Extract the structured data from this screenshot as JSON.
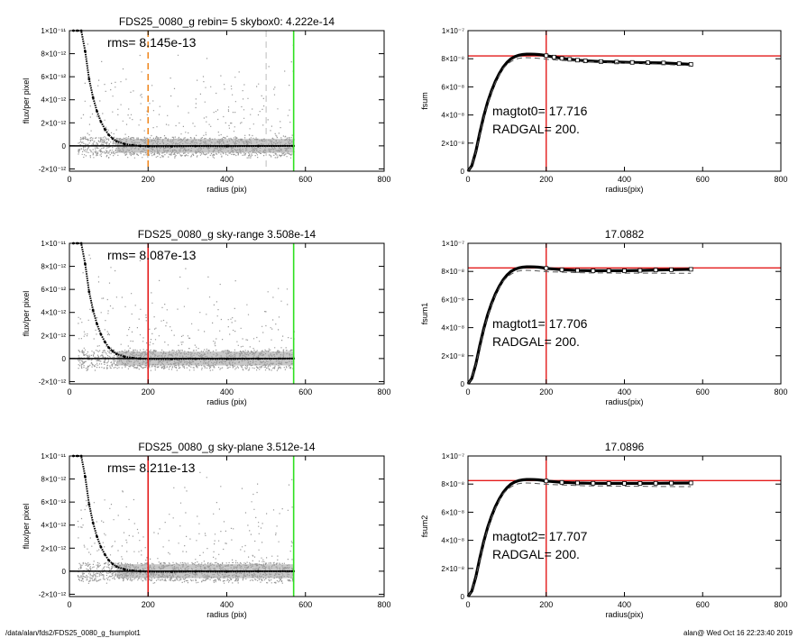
{
  "colors": {
    "points": "#999999",
    "profile": "#000000",
    "orange_line": "#f08a24",
    "red_line": "#e41b1b",
    "green_line": "#2fe01f",
    "faint_line": "#bdbdbd"
  },
  "footer": {
    "left": "/data/alan/fds2/FDS25_0080_g_fsumplot1",
    "right": "alan@  Wed Oct 16 22:23:40 2019"
  },
  "chart_data": [
    {
      "type": "scatter",
      "title": "FDS25_0080_g rebin= 5    skybox0:  4.222e-14",
      "annotations": [
        "rms= 8.145e-13"
      ],
      "xlabel": "radius (pix)",
      "ylabel": "flux/per pixel",
      "xlim": [
        0,
        800
      ],
      "ylim": [
        -2.2e-12,
        1e-11
      ],
      "xticks": [
        0,
        200,
        400,
        600,
        800
      ],
      "xtick_labels": [
        "0",
        "200",
        "400",
        "600",
        "800"
      ],
      "yticks": [
        -2e-12,
        0,
        2e-12,
        4e-12,
        6e-12,
        8e-12,
        1e-11
      ],
      "ytick_labels": [
        "-2×10⁻¹²",
        "0",
        "2×10⁻¹²",
        "4×10⁻¹²",
        "6×10⁻¹²",
        "8×10⁻¹²",
        "1×10⁻¹¹"
      ],
      "vlines": [
        {
          "x": 200,
          "color": "orange",
          "style": "dashed"
        },
        {
          "x": 500,
          "color": "faint",
          "style": "dashed"
        },
        {
          "x": 570,
          "color": "green",
          "style": "solid"
        }
      ],
      "hline": 0,
      "profile": {
        "x": [
          10,
          20,
          30,
          40,
          50,
          60,
          70,
          80,
          90,
          100,
          110,
          120,
          140,
          160,
          180,
          200,
          260,
          320,
          400,
          480,
          570
        ],
        "y": [
          1e-11,
          1e-11,
          1e-11,
          8.2e-12,
          5.8e-12,
          4.2e-12,
          3e-12,
          2.1e-12,
          1.45e-12,
          9.5e-13,
          6.3e-13,
          4e-13,
          1.6e-13,
          5e-14,
          0,
          -3e-14,
          -4e-14,
          -2e-14,
          -3e-14,
          -1e-14,
          0
        ]
      }
    },
    {
      "type": "line",
      "title": "",
      "annotations": [
        "magtot0=  17.716",
        "RADGAL=    200."
      ],
      "xlabel": "radius(pix)",
      "ylabel": "fsum",
      "xlim": [
        0,
        800
      ],
      "ylim": [
        0,
        1e-07
      ],
      "xticks": [
        0,
        200,
        400,
        600,
        800
      ],
      "xtick_labels": [
        "0",
        "200",
        "400",
        "600",
        "800"
      ],
      "yticks": [
        0,
        2e-08,
        4e-08,
        6e-08,
        8e-08,
        1e-07
      ],
      "ytick_labels": [
        "0",
        "2×10⁻⁸",
        "4×10⁻⁸",
        "6×10⁻⁸",
        "8×10⁻⁸",
        "1×10⁻⁷"
      ],
      "hline": 8.2e-08,
      "vline": 200,
      "series": [
        {
          "x": [
            0,
            10,
            20,
            30,
            40,
            50,
            60,
            70,
            80,
            90,
            100,
            110,
            120,
            130,
            140,
            150,
            160,
            170,
            180,
            190,
            200,
            220,
            240,
            260,
            280,
            300,
            340,
            380,
            420,
            460,
            500,
            540,
            570
          ],
          "y": [
            0,
            4e-09,
            1.4e-08,
            2.7e-08,
            3.9e-08,
            4.9e-08,
            5.7e-08,
            6.4e-08,
            6.95e-08,
            7.4e-08,
            7.75e-08,
            8e-08,
            8.15e-08,
            8.25e-08,
            8.3e-08,
            8.33e-08,
            8.33e-08,
            8.32e-08,
            8.3e-08,
            8.27e-08,
            8.22e-08,
            8.12e-08,
            8.03e-08,
            7.96e-08,
            7.9e-08,
            7.85e-08,
            7.8e-08,
            7.77e-08,
            7.74e-08,
            7.72e-08,
            7.7e-08,
            7.65e-08,
            7.6e-08
          ]
        },
        {
          "x": [
            0,
            10,
            20,
            30,
            40,
            50,
            60,
            70,
            80,
            90,
            100,
            110,
            120,
            130,
            140,
            150,
            160,
            170,
            180,
            190,
            200,
            240,
            300,
            400,
            500,
            570
          ],
          "y": [
            0,
            4e-09,
            1.35e-08,
            2.6e-08,
            3.8e-08,
            4.8e-08,
            5.6e-08,
            6.3e-08,
            6.85e-08,
            7.3e-08,
            7.6e-08,
            7.8e-08,
            7.95e-08,
            8.03e-08,
            8.07e-08,
            8.08e-08,
            8.07e-08,
            8.05e-08,
            8.03e-08,
            8e-08,
            7.97e-08,
            7.88e-08,
            7.8e-08,
            7.7e-08,
            7.6e-08,
            7.5e-08
          ]
        }
      ]
    },
    {
      "type": "scatter",
      "title": "FDS25_0080_g sky-range  3.508e-14",
      "annotations": [
        "rms= 8.087e-13"
      ],
      "xlabel": "radius (pix)",
      "ylabel": "flux/per pixel",
      "xlim": [
        0,
        800
      ],
      "ylim": [
        -2.2e-12,
        1e-11
      ],
      "xticks": [
        0,
        200,
        400,
        600,
        800
      ],
      "xtick_labels": [
        "0",
        "200",
        "400",
        "600",
        "800"
      ],
      "yticks": [
        -2e-12,
        0,
        2e-12,
        4e-12,
        6e-12,
        8e-12,
        1e-11
      ],
      "ytick_labels": [
        "-2×10⁻¹²",
        "0",
        "2×10⁻¹²",
        "4×10⁻¹²",
        "6×10⁻¹²",
        "8×10⁻¹²",
        "1×10⁻¹¹"
      ],
      "vlines": [
        {
          "x": 200,
          "color": "red",
          "style": "solid"
        },
        {
          "x": 570,
          "color": "green",
          "style": "solid"
        }
      ],
      "hline": 0,
      "profile": {
        "x": [
          10,
          20,
          30,
          40,
          50,
          60,
          70,
          80,
          90,
          100,
          110,
          120,
          140,
          160,
          180,
          200,
          260,
          320,
          400,
          480,
          570
        ],
        "y": [
          1e-11,
          1e-11,
          1e-11,
          8.2e-12,
          5.8e-12,
          4.2e-12,
          3e-12,
          2.1e-12,
          1.45e-12,
          9.5e-13,
          6.3e-13,
          4e-13,
          1.6e-13,
          5e-14,
          0,
          -3e-14,
          -4e-14,
          -2e-14,
          -3e-14,
          -1e-14,
          0
        ]
      }
    },
    {
      "type": "line",
      "title": "17.0882",
      "annotations": [
        "magtot1=  17.706",
        "RADGAL=    200."
      ],
      "xlabel": "radius(pix)",
      "ylabel": "fsum1",
      "xlim": [
        0,
        800
      ],
      "ylim": [
        0,
        1e-07
      ],
      "xticks": [
        0,
        200,
        400,
        600,
        800
      ],
      "xtick_labels": [
        "0",
        "200",
        "400",
        "600",
        "800"
      ],
      "yticks": [
        0,
        2e-08,
        4e-08,
        6e-08,
        8e-08,
        1e-07
      ],
      "ytick_labels": [
        "0",
        "2×10⁻⁸",
        "4×10⁻⁸",
        "6×10⁻⁸",
        "8×10⁻⁸",
        "1×10⁻⁷"
      ],
      "hline": 8.25e-08,
      "vline": 200,
      "series": [
        {
          "x": [
            0,
            10,
            20,
            30,
            40,
            50,
            60,
            70,
            80,
            90,
            100,
            110,
            120,
            130,
            140,
            150,
            160,
            170,
            180,
            190,
            200,
            240,
            280,
            320,
            360,
            400,
            440,
            480,
            520,
            570
          ],
          "y": [
            0,
            4e-09,
            1.4e-08,
            2.7e-08,
            3.9e-08,
            4.9e-08,
            5.7e-08,
            6.4e-08,
            6.95e-08,
            7.4e-08,
            7.75e-08,
            8e-08,
            8.15e-08,
            8.25e-08,
            8.3e-08,
            8.33e-08,
            8.33e-08,
            8.32e-08,
            8.3e-08,
            8.27e-08,
            8.22e-08,
            8.12e-08,
            8.07e-08,
            8.05e-08,
            8.05e-08,
            8.05e-08,
            8.07e-08,
            8.1e-08,
            8.12e-08,
            8.15e-08
          ]
        },
        {
          "x": [
            0,
            10,
            20,
            30,
            40,
            50,
            60,
            70,
            80,
            90,
            100,
            110,
            120,
            130,
            140,
            150,
            160,
            170,
            180,
            190,
            200,
            300,
            400,
            500,
            570
          ],
          "y": [
            0,
            4e-09,
            1.35e-08,
            2.6e-08,
            3.8e-08,
            4.8e-08,
            5.6e-08,
            6.3e-08,
            6.85e-08,
            7.3e-08,
            7.6e-08,
            7.8e-08,
            7.95e-08,
            8.03e-08,
            8.07e-08,
            8.08e-08,
            8.07e-08,
            8.05e-08,
            8.03e-08,
            8e-08,
            7.98e-08,
            7.9e-08,
            7.88e-08,
            7.87e-08,
            7.87e-08
          ]
        }
      ]
    },
    {
      "type": "scatter",
      "title": "FDS25_0080_g sky-plane  3.512e-14",
      "annotations": [
        "rms= 8.211e-13"
      ],
      "xlabel": "radius (pix)",
      "ylabel": "flux/per pixel",
      "xlim": [
        0,
        800
      ],
      "ylim": [
        -2.2e-12,
        1e-11
      ],
      "xticks": [
        0,
        200,
        400,
        600,
        800
      ],
      "xtick_labels": [
        "0",
        "200",
        "400",
        "600",
        "800"
      ],
      "yticks": [
        -2e-12,
        0,
        2e-12,
        4e-12,
        6e-12,
        8e-12,
        1e-11
      ],
      "ytick_labels": [
        "-2×10⁻¹²",
        "0",
        "2×10⁻¹²",
        "4×10⁻¹²",
        "6×10⁻¹²",
        "8×10⁻¹²",
        "1×10⁻¹¹"
      ],
      "vlines": [
        {
          "x": 200,
          "color": "red",
          "style": "solid"
        },
        {
          "x": 570,
          "color": "green",
          "style": "solid"
        }
      ],
      "hline": 0,
      "profile": {
        "x": [
          10,
          20,
          30,
          40,
          50,
          60,
          70,
          80,
          90,
          100,
          110,
          120,
          140,
          160,
          180,
          200,
          260,
          320,
          400,
          480,
          570
        ],
        "y": [
          1e-11,
          1e-11,
          1e-11,
          8.2e-12,
          5.8e-12,
          4.2e-12,
          3e-12,
          2.1e-12,
          1.45e-12,
          9.5e-13,
          6.3e-13,
          4e-13,
          1.6e-13,
          5e-14,
          0,
          -3e-14,
          -4e-14,
          -2e-14,
          -3e-14,
          -1e-14,
          0
        ]
      }
    },
    {
      "type": "line",
      "title": "17.0896",
      "annotations": [
        "magtot2=  17.707",
        "RADGAL=    200."
      ],
      "xlabel": "radius(pix)",
      "ylabel": "fsum2",
      "xlim": [
        0,
        800
      ],
      "ylim": [
        0,
        1e-07
      ],
      "xticks": [
        0,
        200,
        400,
        600,
        800
      ],
      "xtick_labels": [
        "0",
        "200",
        "400",
        "600",
        "800"
      ],
      "yticks": [
        0,
        2e-08,
        4e-08,
        6e-08,
        8e-08,
        1e-07
      ],
      "ytick_labels": [
        "0",
        "2×10⁻⁸",
        "4×10⁻⁸",
        "6×10⁻⁸",
        "8×10⁻⁸",
        "1×10⁻⁷"
      ],
      "hline": 8.25e-08,
      "vline": 200,
      "series": [
        {
          "x": [
            0,
            10,
            20,
            30,
            40,
            50,
            60,
            70,
            80,
            90,
            100,
            110,
            120,
            130,
            140,
            150,
            160,
            170,
            180,
            190,
            200,
            240,
            280,
            320,
            360,
            400,
            440,
            480,
            520,
            570
          ],
          "y": [
            0,
            4e-09,
            1.4e-08,
            2.7e-08,
            3.9e-08,
            4.9e-08,
            5.7e-08,
            6.4e-08,
            6.95e-08,
            7.4e-08,
            7.75e-08,
            8e-08,
            8.15e-08,
            8.25e-08,
            8.3e-08,
            8.33e-08,
            8.33e-08,
            8.32e-08,
            8.3e-08,
            8.27e-08,
            8.22e-08,
            8.12e-08,
            8.08e-08,
            8.06e-08,
            8.05e-08,
            8.05e-08,
            8.05e-08,
            8.06e-08,
            8.07e-08,
            8.08e-08
          ]
        },
        {
          "x": [
            0,
            10,
            20,
            30,
            40,
            50,
            60,
            70,
            80,
            90,
            100,
            110,
            120,
            130,
            140,
            150,
            160,
            170,
            180,
            190,
            200,
            300,
            400,
            500,
            570
          ],
          "y": [
            0,
            4e-09,
            1.35e-08,
            2.6e-08,
            3.8e-08,
            4.8e-08,
            5.6e-08,
            6.3e-08,
            6.85e-08,
            7.3e-08,
            7.6e-08,
            7.8e-08,
            7.95e-08,
            8.03e-08,
            8.07e-08,
            8.08e-08,
            8.07e-08,
            8.05e-08,
            8.03e-08,
            8e-08,
            7.98e-08,
            7.88e-08,
            7.85e-08,
            7.83e-08,
            7.82e-08
          ]
        }
      ]
    }
  ]
}
